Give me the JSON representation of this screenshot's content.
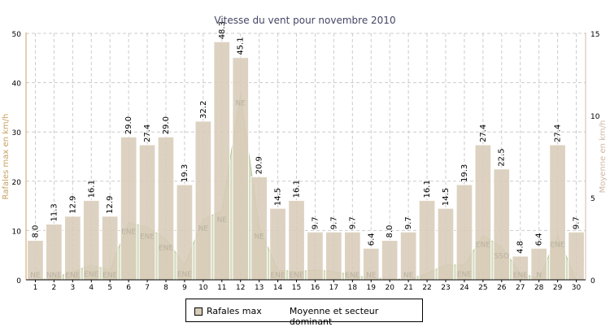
{
  "chart_data": {
    "type": "bar",
    "title": "Vitesse du vent pour novembre 2010",
    "ylabel": "Rafales max en km/h",
    "ylabel_right": "Moyenne en km/h",
    "ylim": [
      0,
      50
    ],
    "ylim_right": [
      0,
      15
    ],
    "yticks": [
      0,
      10,
      20,
      30,
      40,
      50
    ],
    "yticks_right": [
      0,
      5,
      10,
      15
    ],
    "grid": true,
    "legend_position": "bottom",
    "categories": [
      "1",
      "2",
      "3",
      "4",
      "5",
      "6",
      "7",
      "8",
      "9",
      "10",
      "11",
      "12",
      "13",
      "14",
      "15",
      "16",
      "17",
      "18",
      "19",
      "20",
      "21",
      "22",
      "23",
      "24",
      "25",
      "26",
      "27",
      "28",
      "29",
      "30"
    ],
    "series": [
      {
        "name": "Rafales max",
        "type": "bar",
        "axis": "left",
        "color": "#d8ccb8",
        "values": [
          8.0,
          11.3,
          12.9,
          16.1,
          12.9,
          29.0,
          27.4,
          29.0,
          19.3,
          32.2,
          48.3,
          45.1,
          20.9,
          14.5,
          16.1,
          9.7,
          9.7,
          9.7,
          6.4,
          8.0,
          9.7,
          16.1,
          14.5,
          19.3,
          27.4,
          22.5,
          4.8,
          6.4,
          27.4,
          9.7
        ],
        "labels": [
          "8.0",
          "11.3",
          "12.9",
          "16.1",
          "12.9",
          "29.0",
          "27.4",
          "29.0",
          "19.3",
          "32.2",
          "48.3",
          "45.1",
          "20.9",
          "14.5",
          "16.1",
          "9.7",
          "9.7",
          "9.7",
          "6.4",
          "8.0",
          "9.7",
          "16.1",
          "14.5",
          "19.3",
          "27.4",
          "22.5",
          "4.8",
          "6.4",
          "27.4",
          "9.7"
        ]
      },
      {
        "name": "Moyenne et secteur dominant",
        "type": "area",
        "axis": "right",
        "color": "#c3d0a8",
        "values": [
          0.0,
          0.1,
          0.5,
          0.9,
          0.6,
          3.5,
          3.2,
          2.5,
          0.9,
          3.7,
          4.2,
          11.3,
          3.2,
          0.6,
          0.5,
          0.6,
          0.5,
          0.3,
          0.1,
          0.1,
          0.0,
          0.4,
          0.9,
          0.9,
          2.7,
          2.0,
          0.4,
          0.1,
          2.7,
          0.0
        ],
        "sectors": [
          "NE",
          "NNE",
          "ENE",
          "ENE",
          "ENE",
          "ENE",
          "ENE",
          "ENE",
          "ENE",
          "NE",
          "NE",
          "NE",
          "NE",
          "ENE",
          "ENE",
          "",
          "",
          "ENE",
          "NE",
          "",
          "NE",
          "",
          "",
          "ENE",
          "ENE",
          "SSO",
          "ENE",
          "N",
          "ENE",
          ""
        ]
      }
    ]
  }
}
